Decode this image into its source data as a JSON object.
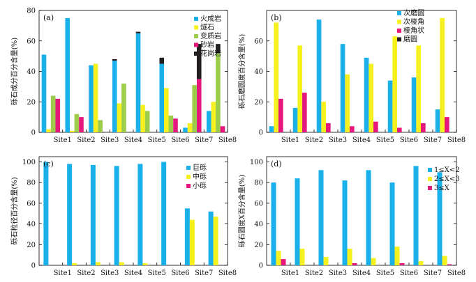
{
  "chart_data": [
    {
      "panel": "(a)",
      "type": "bar",
      "categories": [
        "Site1",
        "Site2",
        "Site3",
        "Site4",
        "Site5",
        "Site6",
        "Site7",
        "Site8"
      ],
      "ylabel": "砾石成分百分含量(%)",
      "ylim": [
        0,
        80
      ],
      "yticks": [
        0,
        20,
        40,
        60,
        80
      ],
      "stacked_series": [
        "花岗岩"
      ],
      "legend_position": "top-right",
      "series": [
        {
          "name": "火成岩",
          "color": "#1ab0ea",
          "values": [
            51,
            75,
            44,
            47,
            65,
            45,
            3,
            14
          ]
        },
        {
          "name": "燧石",
          "color": "#f5f01e",
          "values": [
            2,
            1,
            45,
            19,
            18,
            29,
            6,
            20
          ]
        },
        {
          "name": "变质岩",
          "color": "#9ccc4a",
          "values": [
            24,
            12,
            8,
            32,
            14,
            11,
            31,
            52
          ]
        },
        {
          "name": "砂岩",
          "color": "#e6177d",
          "values": [
            22,
            10,
            0,
            0,
            0,
            9,
            35,
            4
          ]
        },
        {
          "name": "花岗岩",
          "color": "#231f20",
          "values": [
            0,
            0,
            0,
            1,
            1,
            4,
            23,
            6
          ]
        }
      ]
    },
    {
      "panel": "(b)",
      "type": "bar",
      "categories": [
        "Site1",
        "Site2",
        "Site3",
        "Site4",
        "Site5",
        "Site6",
        "Site7",
        "Site8"
      ],
      "ylabel": "砾石磨圆度百分含量(%)",
      "ylim": [
        0,
        80
      ],
      "yticks": [
        0,
        20,
        40,
        60
      ],
      "legend_position": "top-right",
      "series": [
        {
          "name": "次磨圆",
          "color": "#1ab0ea",
          "values": [
            4,
            16,
            74,
            58,
            49,
            34,
            36,
            15
          ]
        },
        {
          "name": "次棱角",
          "color": "#f5f01e",
          "values": [
            72,
            57,
            20,
            38,
            45,
            63,
            57,
            75
          ]
        },
        {
          "name": "棱角状",
          "color": "#e6177d",
          "values": [
            22,
            26,
            6,
            4,
            7,
            3,
            6,
            10
          ]
        },
        {
          "name": "磨圆",
          "color": "#231f20",
          "values": [
            0,
            0,
            0,
            0,
            0,
            0,
            0,
            0
          ]
        }
      ]
    },
    {
      "panel": "(c)",
      "type": "bar",
      "categories": [
        "Site1",
        "Site2",
        "Site3",
        "Site4",
        "Site5",
        "Site6",
        "Site7",
        "Site8"
      ],
      "ylabel": "砾石粒径百分含量(%)",
      "ylim": [
        0,
        105
      ],
      "yticks": [
        0,
        20,
        40,
        60,
        80,
        100
      ],
      "legend_position": "top-right",
      "series": [
        {
          "name": "巨砾",
          "color": "#1ab0ea",
          "values": [
            100,
            98,
            97,
            96,
            98,
            100,
            55,
            52
          ]
        },
        {
          "name": "中砾",
          "color": "#f5f01e",
          "values": [
            0,
            2,
            3,
            3,
            2,
            0,
            44,
            47
          ]
        },
        {
          "name": "小砾",
          "color": "#e6177d",
          "values": [
            0,
            0,
            0,
            0,
            0,
            0,
            0,
            0
          ]
        }
      ]
    },
    {
      "panel": "(d)",
      "type": "bar",
      "categories": [
        "Site1",
        "Site2",
        "Site3",
        "Site4",
        "Site5",
        "Site6",
        "Site7",
        "Site8"
      ],
      "ylabel": "砾石圆度X百分含量(%)",
      "ylim": [
        0,
        105
      ],
      "yticks": [
        0,
        20,
        40,
        60,
        80,
        100
      ],
      "legend_position": "top-right",
      "series": [
        {
          "name": "1≤X<2",
          "color": "#1ab0ea",
          "values": [
            80,
            84,
            92,
            82,
            92,
            80,
            96,
            90
          ]
        },
        {
          "name": "2≤X<3",
          "color": "#f5f01e",
          "values": [
            14,
            16,
            8,
            16,
            7,
            18,
            4,
            9
          ]
        },
        {
          "name": "3≤X",
          "color": "#e6177d",
          "values": [
            6,
            0,
            0,
            2,
            0,
            2,
            0,
            1
          ]
        }
      ]
    }
  ]
}
